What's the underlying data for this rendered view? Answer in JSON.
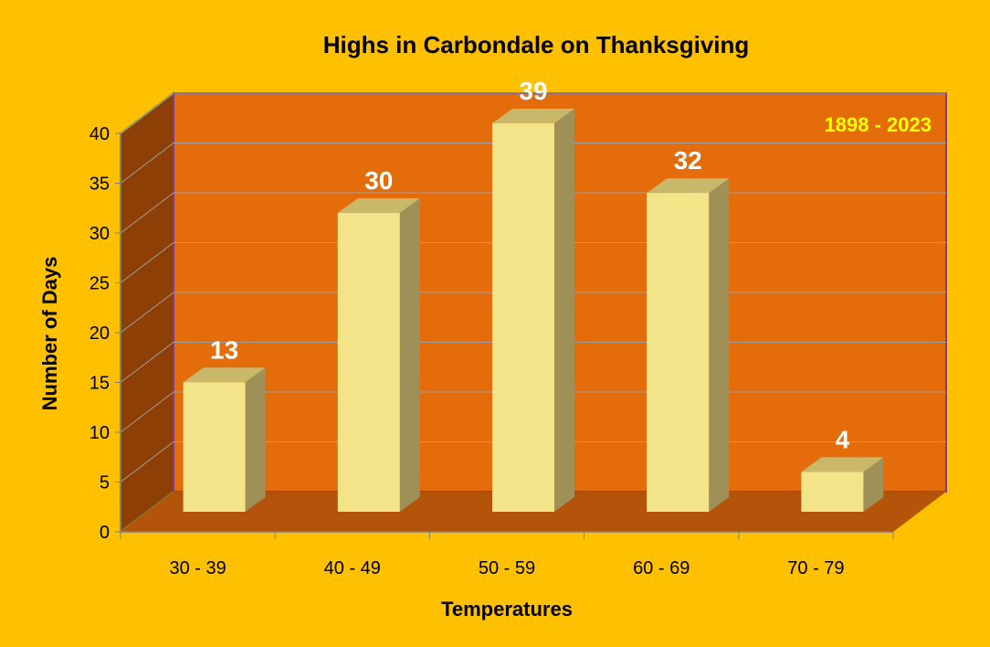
{
  "colors": {
    "background": "#FFC000",
    "back_wall": "#E46C0A",
    "side_wall": "#8E3F06",
    "floor": "#B4530A",
    "gridline": "#A0A0A0",
    "bar_front": "#F3E389",
    "bar_top": "#C9B86A",
    "bar_side": "#9E9056",
    "axis": "#7F7F7F"
  },
  "chart_data": {
    "type": "bar",
    "title": "Highs in Carbondale on Thanksgiving",
    "xlabel": "Temperatures",
    "ylabel": "Number of Days",
    "annotation": "1898 - 2023",
    "categories": [
      "30 - 39",
      "40 - 49",
      "50 - 59",
      "60 - 69",
      "70 - 79"
    ],
    "values": [
      13,
      30,
      39,
      32,
      4
    ],
    "ylim": [
      0,
      40
    ],
    "yticks": [
      0,
      5,
      10,
      15,
      20,
      25,
      30,
      35,
      40
    ],
    "grid": true,
    "legend": "none",
    "style": "3d-column"
  }
}
